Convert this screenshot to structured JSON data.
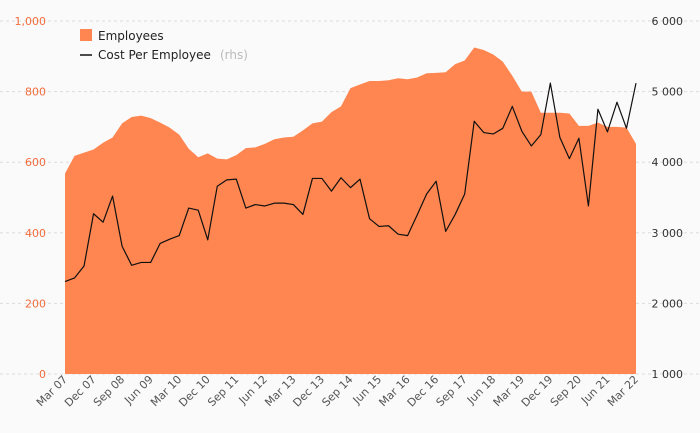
{
  "chart_data": {
    "type": "area",
    "legend": {
      "placement": "top-left",
      "employees": "Employees",
      "cost": "Cost Per Employee",
      "cost_note": "(rhs)"
    },
    "colors": {
      "area": "#ff8650",
      "line": "#111111",
      "left_axis": "#f26c3c",
      "right_axis": "#333333"
    },
    "grid": true,
    "y_left": {
      "range": [
        0,
        1000
      ],
      "ticks": [
        0,
        200,
        400,
        600,
        800,
        1000
      ],
      "tick_labels": [
        "0",
        "200",
        "400",
        "600",
        "800",
        "1,000"
      ]
    },
    "y_right": {
      "range": [
        1000,
        6000
      ],
      "ticks": [
        1000,
        2000,
        3000,
        4000,
        5000,
        6000
      ],
      "tick_labels": [
        "1 000",
        "2 000",
        "3 000",
        "4 000",
        "5 000",
        "6 000"
      ]
    },
    "x_tick_labels": [
      "Mar 07",
      "Dec 07",
      "Sep 08",
      "Jun 09",
      "Mar 10",
      "Dec 10",
      "Sep 11",
      "Jun 12",
      "Mar 13",
      "Dec 13",
      "Sep 14",
      "Jun 15",
      "Mar 16",
      "Dec 16",
      "Sep 17",
      "Jun 18",
      "Mar 19",
      "Dec 19",
      "Sep 20",
      "Jun 21",
      "Mar 22"
    ],
    "series": [
      {
        "name": "Employees",
        "axis": "left",
        "values": [
          568,
          618,
          627,
          636,
          655,
          670,
          710,
          728,
          732,
          725,
          712,
          698,
          678,
          638,
          614,
          625,
          610,
          608,
          620,
          640,
          642,
          652,
          665,
          670,
          672,
          690,
          710,
          715,
          742,
          758,
          810,
          820,
          830,
          830,
          832,
          838,
          835,
          840,
          852,
          853,
          855,
          878,
          888,
          925,
          918,
          905,
          885,
          845,
          800,
          800,
          740,
          740,
          740,
          738,
          703,
          703,
          712,
          700,
          700,
          698,
          652
        ]
      },
      {
        "name": "Cost Per Employee",
        "axis": "right",
        "values": [
          2310,
          2360,
          2530,
          3270,
          3150,
          3520,
          2810,
          2540,
          2580,
          2580,
          2850,
          2910,
          2960,
          3350,
          3320,
          2900,
          3660,
          3750,
          3760,
          3350,
          3400,
          3380,
          3420,
          3420,
          3400,
          3260,
          3770,
          3770,
          3590,
          3780,
          3640,
          3760,
          3200,
          3090,
          3100,
          2980,
          2960,
          3250,
          3550,
          3730,
          3020,
          3260,
          3550,
          4580,
          4420,
          4400,
          4480,
          4790,
          4440,
          4230,
          4390,
          5120,
          4350,
          4050,
          4340,
          3380,
          4750,
          4430,
          4850,
          4480,
          5120
        ]
      }
    ]
  }
}
